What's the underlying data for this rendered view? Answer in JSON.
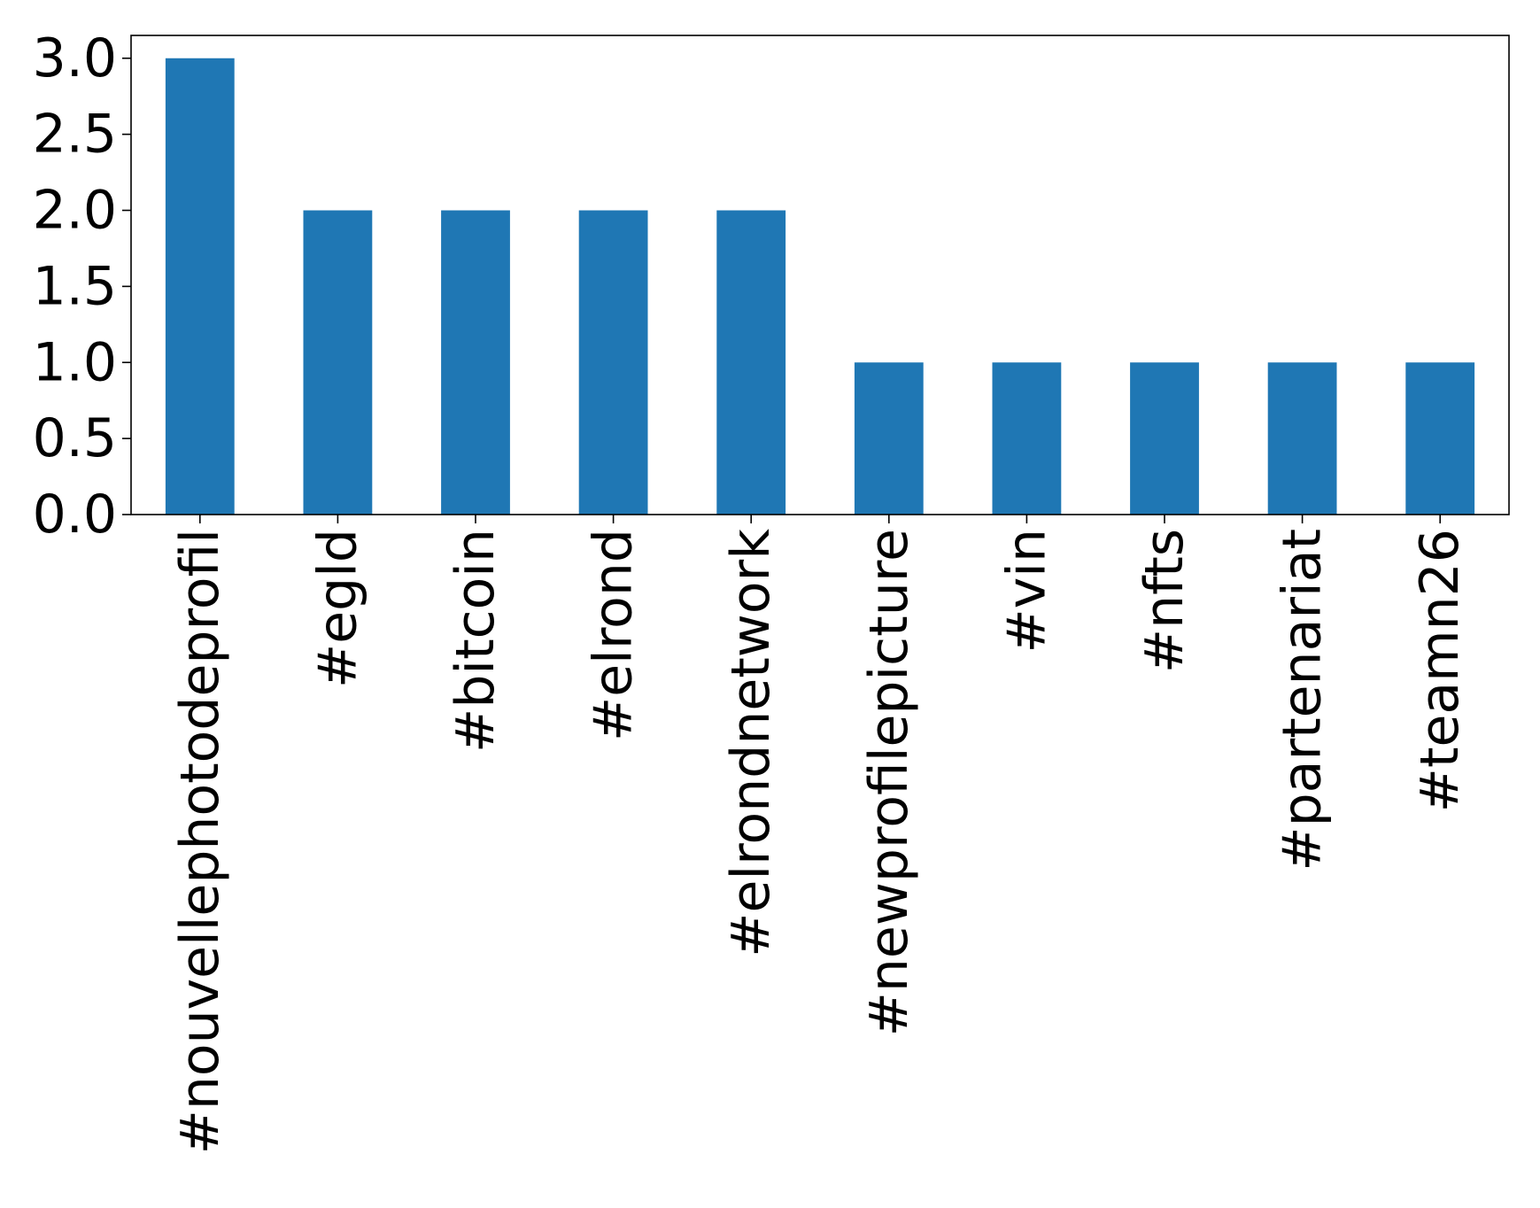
{
  "chart_data": {
    "type": "bar",
    "categories": [
      "#nouvellephotodeprofil",
      "#egld",
      "#bitcoin",
      "#elrond",
      "#elrondnetwork",
      "#newprofilepicture",
      "#vin",
      "#nfts",
      "#partenariat",
      "#teamn26"
    ],
    "values": [
      3,
      2,
      2,
      2,
      2,
      1,
      1,
      1,
      1,
      1
    ],
    "y_ticks": [
      "0.0",
      "0.5",
      "1.0",
      "1.5",
      "2.0",
      "2.5",
      "3.0"
    ],
    "ylim": [
      0,
      3.15
    ],
    "grid": false,
    "legend": false,
    "bar_color": "#1f77b4",
    "x_tick_rotation": "vertical"
  }
}
